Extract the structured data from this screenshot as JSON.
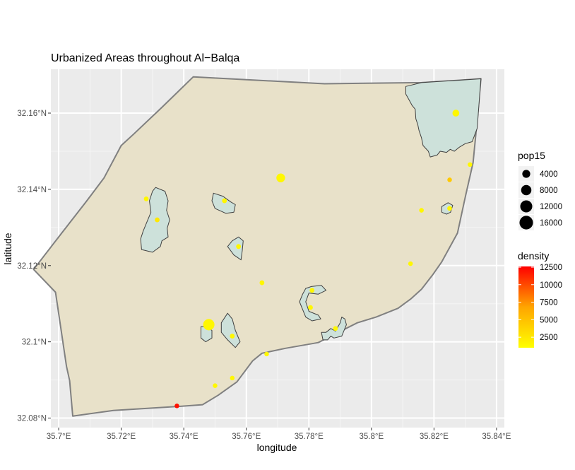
{
  "chart_data": {
    "type": "scatter",
    "title": "Urbanized Areas throughout Al−Balqa",
    "xlabel": "longitude",
    "ylabel": "latitude",
    "xlim": [
      35.6975,
      35.8425
    ],
    "ylim": [
      32.0775,
      32.1715
    ],
    "grid": true,
    "x_ticks": [
      {
        "value": 35.7,
        "label": "35.7°E"
      },
      {
        "value": 35.72,
        "label": "35.72°E"
      },
      {
        "value": 35.74,
        "label": "35.74°E"
      },
      {
        "value": 35.76,
        "label": "35.76°E"
      },
      {
        "value": 35.78,
        "label": "35.78°E"
      },
      {
        "value": 35.8,
        "label": "35.8°E"
      },
      {
        "value": 35.82,
        "label": "35.82°E"
      },
      {
        "value": 35.84,
        "label": "35.84°E"
      }
    ],
    "y_ticks": [
      {
        "value": 32.08,
        "label": "32.08°N"
      },
      {
        "value": 32.1,
        "label": "32.1°N"
      },
      {
        "value": 32.12,
        "label": "32.12°N"
      },
      {
        "value": 32.14,
        "label": "32.14°N"
      },
      {
        "value": 32.16,
        "label": "32.16°N"
      }
    ],
    "colors": {
      "panel": "#ebebeb",
      "grid": "#ffffff",
      "region_fill": "#e8e1c9",
      "region_stroke": "#808080",
      "urban_fill": "#cde1da",
      "urban_stroke": "#404040",
      "density_low": "#ffff00",
      "density_high": "#ff0000"
    },
    "region_outline": [
      [
        35.7025,
        32.0936
      ],
      [
        35.7035,
        32.0898
      ],
      [
        35.7045,
        32.0805
      ],
      [
        35.7175,
        32.082
      ],
      [
        35.7375,
        32.083
      ],
      [
        35.746,
        32.0835
      ],
      [
        35.751,
        32.086
      ],
      [
        35.757,
        32.0895
      ],
      [
        35.762,
        32.095
      ],
      [
        35.765,
        32.097
      ],
      [
        35.7725,
        32.0983
      ],
      [
        35.783,
        32.0998
      ],
      [
        35.787,
        32.1015
      ],
      [
        35.7955,
        32.105
      ],
      [
        35.8015,
        32.1065
      ],
      [
        35.8085,
        32.1088
      ],
      [
        35.8125,
        32.1112
      ],
      [
        35.816,
        32.1138
      ],
      [
        35.8195,
        32.1175
      ],
      [
        35.8225,
        32.121
      ],
      [
        35.8255,
        32.1255
      ],
      [
        35.8275,
        32.1285
      ],
      [
        35.83,
        32.138
      ],
      [
        35.8325,
        32.147
      ],
      [
        35.8335,
        32.1555
      ],
      [
        35.835,
        32.169
      ],
      [
        35.816,
        32.168
      ],
      [
        35.785,
        32.1677
      ],
      [
        35.743,
        32.1695
      ],
      [
        35.733,
        32.1615
      ],
      [
        35.724,
        32.1545
      ],
      [
        35.72,
        32.1515
      ],
      [
        35.7145,
        32.143
      ],
      [
        35.709,
        32.137
      ],
      [
        35.7,
        32.1275
      ],
      [
        35.692,
        32.119
      ],
      [
        35.699,
        32.113
      ]
    ],
    "urban_polygons": [
      [
        [
          35.816,
          32.168
        ],
        [
          35.835,
          32.169
        ],
        [
          35.8338,
          32.156
        ],
        [
          35.8322,
          32.1525
        ],
        [
          35.83,
          32.152
        ],
        [
          35.828,
          32.151
        ],
        [
          35.8265,
          32.15
        ],
        [
          35.8252,
          32.1505
        ],
        [
          35.824,
          32.1497
        ],
        [
          35.822,
          32.15
        ],
        [
          35.821,
          32.149
        ],
        [
          35.8188,
          32.1485
        ],
        [
          35.8182,
          32.15
        ],
        [
          35.8165,
          32.1515
        ],
        [
          35.816,
          32.1535
        ],
        [
          35.8152,
          32.1555
        ],
        [
          35.8148,
          32.157
        ],
        [
          35.8142,
          32.1585
        ],
        [
          35.814,
          32.161
        ],
        [
          35.813,
          32.162
        ],
        [
          35.812,
          32.1635
        ],
        [
          35.811,
          32.165
        ],
        [
          35.811,
          32.167
        ]
      ],
      [
        [
          35.731,
          32.1405
        ],
        [
          35.734,
          32.1395
        ],
        [
          35.735,
          32.137
        ],
        [
          35.7345,
          32.1345
        ],
        [
          35.7355,
          32.132
        ],
        [
          35.7347,
          32.1298
        ],
        [
          35.735,
          32.1275
        ],
        [
          35.733,
          32.1265
        ],
        [
          35.7325,
          32.125
        ],
        [
          35.73,
          32.1235
        ],
        [
          35.7265,
          32.1242
        ],
        [
          35.7262,
          32.127
        ],
        [
          35.727,
          32.129
        ],
        [
          35.728,
          32.131
        ],
        [
          35.7295,
          32.134
        ],
        [
          35.729,
          32.137
        ],
        [
          35.73,
          32.1395
        ]
      ],
      [
        [
          35.7495,
          32.139
        ],
        [
          35.7525,
          32.1382
        ],
        [
          35.755,
          32.1367
        ],
        [
          35.7565,
          32.136
        ],
        [
          35.756,
          32.134
        ],
        [
          35.7535,
          32.1337
        ],
        [
          35.75,
          32.135
        ],
        [
          35.749,
          32.137
        ]
      ],
      [
        [
          35.7555,
          32.1265
        ],
        [
          35.7575,
          32.1275
        ],
        [
          35.759,
          32.1265
        ],
        [
          35.7587,
          32.124
        ],
        [
          35.7583,
          32.1215
        ],
        [
          35.756,
          32.1228
        ],
        [
          35.754,
          32.125
        ]
      ],
      [
        [
          35.7808,
          32.1145
        ],
        [
          35.784,
          32.1148
        ],
        [
          35.7855,
          32.1135
        ],
        [
          35.783,
          32.1125
        ],
        [
          35.78,
          32.1128
        ],
        [
          35.779,
          32.1105
        ],
        [
          35.78,
          32.108
        ],
        [
          35.783,
          32.107
        ],
        [
          35.7838,
          32.106
        ],
        [
          35.781,
          32.1055
        ],
        [
          35.779,
          32.1065
        ],
        [
          35.778,
          32.1085
        ],
        [
          35.777,
          32.1105
        ],
        [
          35.778,
          32.1125
        ],
        [
          35.779,
          32.114
        ]
      ],
      [
        [
          35.784,
          32.1025
        ],
        [
          35.7855,
          32.1025
        ],
        [
          35.787,
          32.1035
        ],
        [
          35.7885,
          32.1028
        ],
        [
          35.79,
          32.105
        ],
        [
          35.7905,
          32.1065
        ],
        [
          35.7915,
          32.106
        ],
        [
          35.792,
          32.1045
        ],
        [
          35.7905,
          32.1015
        ],
        [
          35.788,
          32.101
        ],
        [
          35.787,
          32.1015
        ],
        [
          35.786,
          32.1005
        ],
        [
          35.7845,
          32.1005
        ]
      ],
      [
        [
          35.7455,
          32.104
        ],
        [
          35.747,
          32.104
        ],
        [
          35.749,
          32.103
        ],
        [
          35.749,
          32.101
        ],
        [
          35.747,
          32.1
        ],
        [
          35.7455,
          32.101
        ]
      ],
      [
        [
          35.752,
          32.105
        ],
        [
          35.754,
          32.1075
        ],
        [
          35.7555,
          32.106
        ],
        [
          35.7565,
          32.103
        ],
        [
          35.758,
          32.1
        ],
        [
          35.7565,
          32.0985
        ],
        [
          35.754,
          32.1005
        ],
        [
          35.752,
          32.1025
        ]
      ],
      [
        [
          35.8225,
          32.1355
        ],
        [
          35.8245,
          32.1365
        ],
        [
          35.826,
          32.1358
        ],
        [
          35.8253,
          32.134
        ],
        [
          35.824,
          32.1335
        ],
        [
          35.8225,
          32.134
        ]
      ]
    ],
    "points": [
      {
        "lon": 35.827,
        "lat": 32.16,
        "pop15": 2200,
        "density": 1500
      },
      {
        "lon": 35.771,
        "lat": 32.143,
        "pop15": 4500,
        "density": 1500
      },
      {
        "lon": 35.748,
        "lat": 32.1045,
        "pop15": 9000,
        "density": 1500
      },
      {
        "lon": 35.728,
        "lat": 32.1375,
        "pop15": 600,
        "density": 1500
      },
      {
        "lon": 35.7315,
        "lat": 32.132,
        "pop15": 600,
        "density": 2500
      },
      {
        "lon": 35.753,
        "lat": 32.137,
        "pop15": 600,
        "density": 1500
      },
      {
        "lon": 35.7575,
        "lat": 32.125,
        "pop15": 600,
        "density": 1500
      },
      {
        "lon": 35.765,
        "lat": 32.1155,
        "pop15": 600,
        "density": 1500
      },
      {
        "lon": 35.781,
        "lat": 32.1135,
        "pop15": 600,
        "density": 1500
      },
      {
        "lon": 35.7805,
        "lat": 32.109,
        "pop15": 600,
        "density": 1500
      },
      {
        "lon": 35.7555,
        "lat": 32.1015,
        "pop15": 600,
        "density": 1500
      },
      {
        "lon": 35.7885,
        "lat": 32.1035,
        "pop15": 600,
        "density": 1500
      },
      {
        "lon": 35.7665,
        "lat": 32.0968,
        "pop15": 500,
        "density": 1500
      },
      {
        "lon": 35.7555,
        "lat": 32.0905,
        "pop15": 500,
        "density": 1500
      },
      {
        "lon": 35.75,
        "lat": 32.0885,
        "pop15": 500,
        "density": 1500
      },
      {
        "lon": 35.7378,
        "lat": 32.0832,
        "pop15": 500,
        "density": 12000
      },
      {
        "lon": 35.825,
        "lat": 32.1425,
        "pop15": 500,
        "density": 4500
      },
      {
        "lon": 35.816,
        "lat": 32.1345,
        "pop15": 500,
        "density": 1500
      },
      {
        "lon": 35.825,
        "lat": 32.135,
        "pop15": 600,
        "density": 1500
      },
      {
        "lon": 35.8315,
        "lat": 32.1465,
        "pop15": 500,
        "density": 1500
      },
      {
        "lon": 35.8125,
        "lat": 32.1205,
        "pop15": 500,
        "density": 1500
      }
    ],
    "legend_size": {
      "title": "pop15",
      "breaks": [
        4000,
        8000,
        12000,
        16000
      ],
      "labels": [
        "4000",
        "8000",
        "12000",
        "16000"
      ]
    },
    "legend_color": {
      "title": "density",
      "breaks": [
        2500,
        5000,
        7500,
        10000,
        12500
      ],
      "labels": [
        "2500",
        "5000",
        "7500",
        "10000",
        "12500"
      ],
      "range": [
        1000,
        12600
      ]
    },
    "legend_position": "right"
  }
}
